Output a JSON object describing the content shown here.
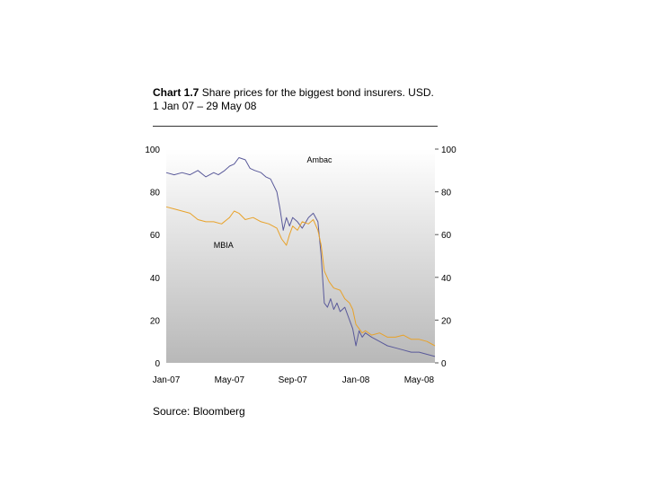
{
  "header": {
    "title_number": "Chart 1.7",
    "title_text": "Share prices for the biggest bond insurers. USD.",
    "subtitle": "1 Jan 07 – 29 May 08"
  },
  "footer": {
    "source": "Source: Bloomberg"
  },
  "colors": {
    "ambac": "#5a5a9a",
    "mbia": "#e8a22a",
    "grad_top": "#ffffff",
    "grad_bottom": "#b8b8b8"
  },
  "chart_data": {
    "type": "line",
    "title": "Share prices for the biggest bond insurers. USD. 1 Jan 07 – 29 May 08",
    "xlabel": "",
    "ylabel": "",
    "ylim": [
      0,
      100
    ],
    "yticks": [
      0,
      20,
      40,
      60,
      80,
      100
    ],
    "ytick_labels": [
      "0",
      "20",
      "40",
      "60",
      "80",
      "100"
    ],
    "x_range_months": [
      0,
      17
    ],
    "xticks": [
      0,
      4,
      8,
      12,
      16
    ],
    "xtick_labels": [
      "Jan-07",
      "May-07",
      "Sep-07",
      "Jan-08",
      "May-08"
    ],
    "series": [
      {
        "name": "Ambac",
        "x": [
          0,
          0.5,
          1,
          1.5,
          2,
          2.5,
          3,
          3.3,
          3.7,
          4,
          4.3,
          4.6,
          5,
          5.3,
          5.6,
          6,
          6.3,
          6.6,
          7,
          7.2,
          7.4,
          7.6,
          7.8,
          8,
          8.3,
          8.6,
          9,
          9.3,
          9.6,
          9.8,
          10,
          10.2,
          10.4,
          10.6,
          10.8,
          11,
          11.3,
          11.6,
          11.8,
          12,
          12.2,
          12.4,
          12.6,
          13,
          13.5,
          14,
          14.5,
          15,
          15.5,
          16,
          16.5,
          17
        ],
        "values": [
          89,
          88,
          89,
          88,
          90,
          87,
          89,
          88,
          90,
          92,
          93,
          96,
          95,
          91,
          90,
          89,
          87,
          86,
          80,
          72,
          62,
          68,
          64,
          68,
          66,
          63,
          68,
          70,
          66,
          50,
          28,
          26,
          30,
          25,
          28,
          24,
          26,
          20,
          16,
          8,
          15,
          12,
          14,
          12,
          10,
          8,
          7,
          6,
          5,
          5,
          4,
          3
        ]
      },
      {
        "name": "MBIA",
        "x": [
          0,
          0.5,
          1,
          1.5,
          2,
          2.5,
          3,
          3.5,
          4,
          4.3,
          4.6,
          5,
          5.5,
          6,
          6.5,
          7,
          7.3,
          7.6,
          7.8,
          8,
          8.3,
          8.6,
          9,
          9.3,
          9.6,
          9.8,
          10,
          10.3,
          10.6,
          11,
          11.3,
          11.6,
          11.8,
          12,
          12.2,
          12.4,
          12.6,
          13,
          13.5,
          14,
          14.5,
          15,
          15.5,
          16,
          16.5,
          17
        ],
        "values": [
          73,
          72,
          71,
          70,
          67,
          66,
          66,
          65,
          68,
          71,
          70,
          67,
          68,
          66,
          65,
          63,
          58,
          55,
          60,
          64,
          62,
          66,
          65,
          67,
          62,
          55,
          43,
          38,
          35,
          34,
          30,
          28,
          25,
          18,
          16,
          14,
          15,
          13,
          14,
          12,
          12,
          13,
          11,
          11,
          10,
          8
        ]
      }
    ],
    "annotations": [
      {
        "text": "Ambac",
        "x": 8.9,
        "y": 95
      },
      {
        "text": "MBIA",
        "x": 3.0,
        "y": 55
      }
    ]
  }
}
